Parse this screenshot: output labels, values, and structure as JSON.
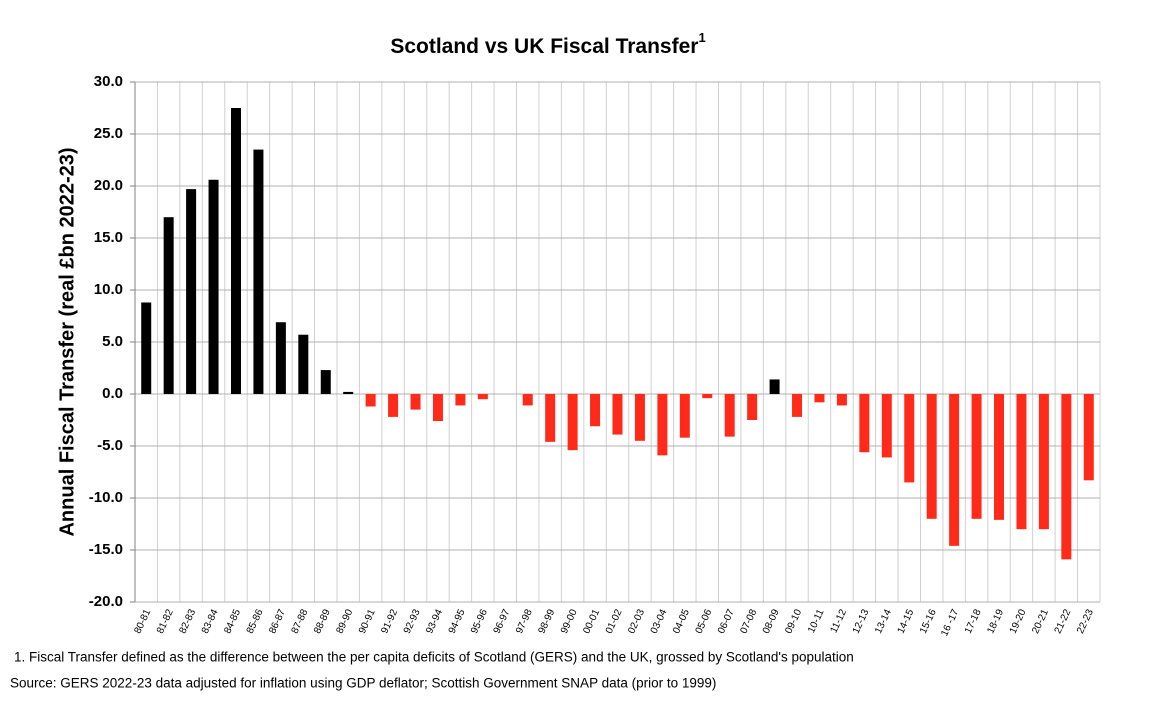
{
  "chart_data": {
    "type": "bar",
    "title": "Scotland vs UK Fiscal Transfer",
    "title_superscript": "1",
    "y_label": "Annual Fiscal Transfer (real £bn 2022-23)",
    "categories": [
      "80-81",
      "81-82",
      "82-83",
      "83-84",
      "84-85",
      "85-86",
      "86-87",
      "87-88",
      "88-89",
      "89-90",
      "90-91",
      "91-92",
      "92-93",
      "93-94",
      "94-95",
      "95-96",
      "96-97",
      "97-98",
      "98-99",
      "99-00",
      "00-01",
      "01-02",
      "02-03",
      "03-04",
      "04-05",
      "05-06",
      "06-07",
      "07-08",
      "08-09",
      "09-10",
      "10-11",
      "11-12",
      "12-13",
      "13-14",
      "14-15",
      "15-16",
      "16 -17",
      "17-18",
      "18-19",
      "19-20",
      "20-21",
      "21-22",
      "22-23"
    ],
    "values": [
      8.8,
      17.0,
      19.7,
      20.6,
      27.5,
      23.5,
      6.9,
      5.7,
      2.3,
      0.2,
      -1.2,
      -2.2,
      -1.5,
      -2.6,
      -1.1,
      -0.5,
      0,
      -1.1,
      -4.6,
      -5.4,
      -3.1,
      -3.9,
      -4.5,
      -5.9,
      -4.2,
      -0.4,
      -4.1,
      -2.5,
      1.4,
      -2.2,
      -0.8,
      -1.1,
      -5.6,
      -6.1,
      -8.5,
      -12.0,
      -14.6,
      -12.0,
      -12.1,
      -13.0,
      -13.0,
      -15.9,
      -8.3
    ],
    "positive_color": "#000000",
    "negative_color": "#ff2a1a",
    "ylim": [
      -20,
      30
    ],
    "yticks": [
      {
        "value": -20,
        "label": "-20.0"
      },
      {
        "value": -15,
        "label": "-15.0"
      },
      {
        "value": -10,
        "label": "-10.0"
      },
      {
        "value": -5,
        "label": "-5.0"
      },
      {
        "value": 0,
        "label": "0.0"
      },
      {
        "value": 5,
        "label": "5.0"
      },
      {
        "value": 10,
        "label": "10.0"
      },
      {
        "value": 15,
        "label": "15.0"
      },
      {
        "value": 20,
        "label": "20.0"
      },
      {
        "value": 25,
        "label": "25.0"
      },
      {
        "value": 30,
        "label": "30.0"
      }
    ],
    "grid": true,
    "notes": [
      "1.  Fiscal Transfer defined as the difference between the per capita deficits of Scotland (GERS) and the UK,  grossed by Scotland's population",
      "Source:  GERS 2022-23 data adjusted for inflation using GDP deflator; Scottish Government SNAP data (prior to 1999)"
    ]
  }
}
